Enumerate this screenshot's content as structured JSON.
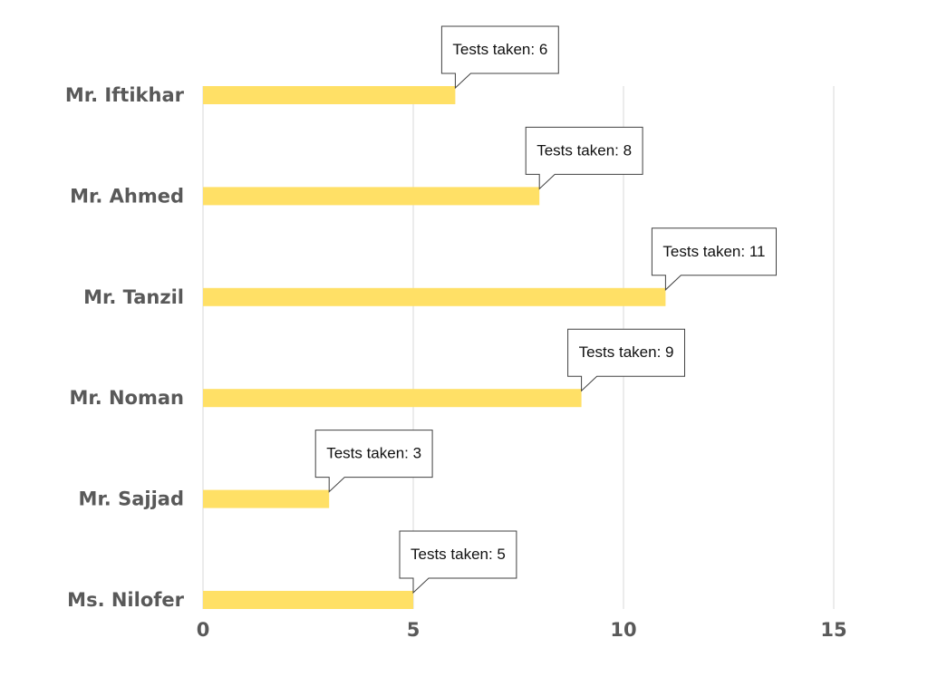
{
  "chart_data": {
    "type": "bar",
    "orientation": "horizontal",
    "categories": [
      "Mr. Iftikhar",
      "Mr. Ahmed",
      "Mr. Tanzil",
      "Mr. Noman",
      "Mr. Sajjad",
      "Ms. Nilofer"
    ],
    "values": [
      6,
      8,
      11,
      9,
      3,
      5
    ],
    "data_labels": [
      "Tests taken: 6",
      "Tests taken: 8",
      "Tests taken: 11",
      "Tests taken: 9",
      "Tests taken: 3",
      "Tests taken: 5"
    ],
    "xlim": [
      0,
      15
    ],
    "x_ticks": [
      "0",
      "5",
      "10",
      "15"
    ],
    "grid": true,
    "legend": "none",
    "bar_color": "#FFE066"
  }
}
